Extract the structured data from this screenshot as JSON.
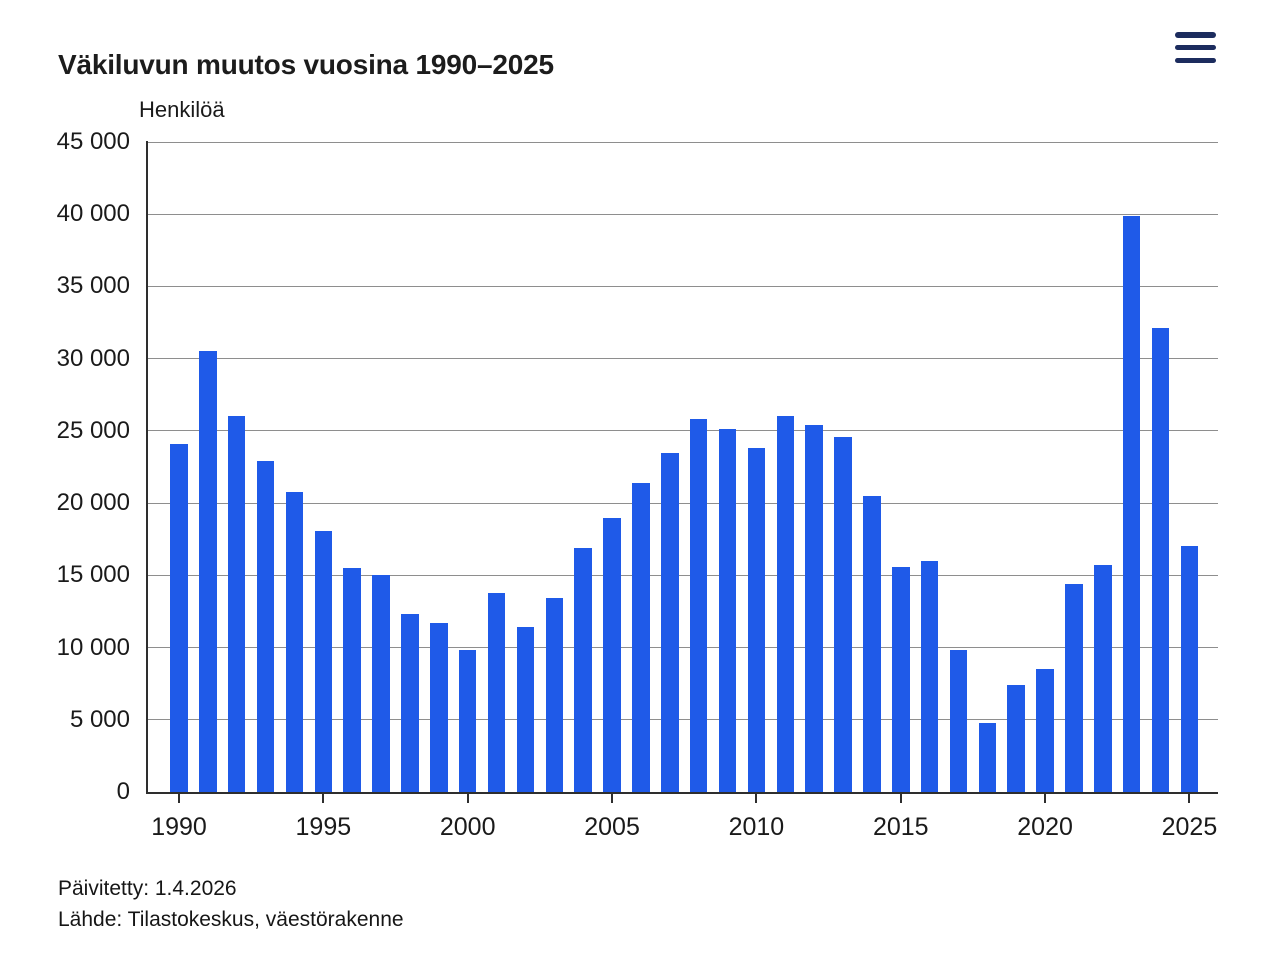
{
  "chart_data": {
    "type": "bar",
    "title": "Väkiluvun muutos vuosina 1990–2025",
    "ylabel": "Henkilöä",
    "xlabel": "",
    "ylim": [
      0,
      45000
    ],
    "ytick_step": 5000,
    "xtick_years": [
      1990,
      1995,
      2000,
      2005,
      2010,
      2015,
      2020,
      2025
    ],
    "grid": true,
    "legend": "none",
    "bar_color": "#1f5ae8",
    "categories": [
      1990,
      1991,
      1992,
      1993,
      1994,
      1995,
      1996,
      1997,
      1998,
      1999,
      2000,
      2001,
      2002,
      2003,
      2004,
      2005,
      2006,
      2007,
      2008,
      2009,
      2010,
      2011,
      2012,
      2013,
      2014,
      2015,
      2016,
      2017,
      2018,
      2019,
      2020,
      2021,
      2022,
      2023,
      2024,
      2025
    ],
    "values": [
      24100,
      30500,
      26000,
      22900,
      20800,
      18100,
      15500,
      15000,
      12300,
      11700,
      9800,
      13800,
      11400,
      13400,
      16900,
      19000,
      21400,
      23500,
      25800,
      25100,
      23800,
      26000,
      25400,
      24600,
      20500,
      15600,
      16000,
      9800,
      4800,
      7400,
      8500,
      14400,
      15700,
      39900,
      32100,
      17000
    ]
  },
  "header": {
    "menu_icon_color": "#1c2c5e"
  },
  "footer": {
    "updated": "Päivitetty: 1.4.2026",
    "source": "Lähde: Tilastokeskus, väestörakenne"
  }
}
